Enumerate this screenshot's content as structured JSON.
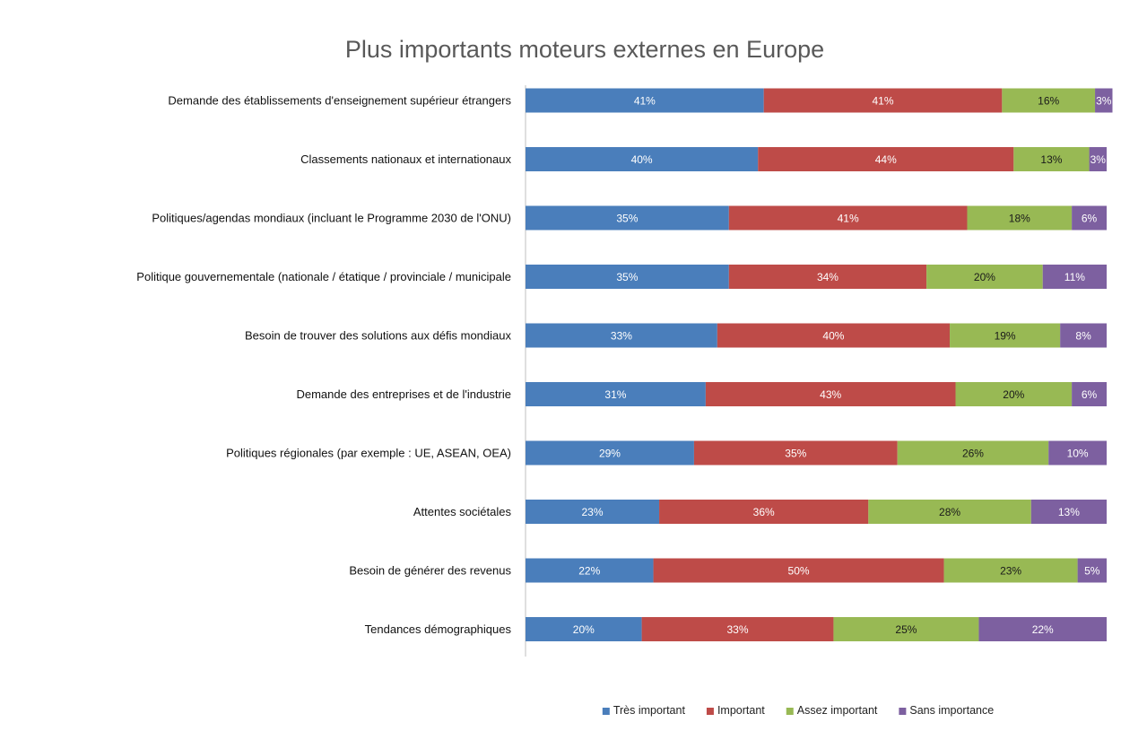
{
  "chart_data": {
    "type": "bar",
    "orientation": "horizontal",
    "stacked": true,
    "percent": true,
    "title": "Plus importants moteurs externes en Europe",
    "xlabel": "",
    "ylabel": "",
    "xlim": [
      0,
      100
    ],
    "grid": false,
    "legend_position": "bottom",
    "categories": [
      "Demande des établissements d'enseignement supérieur étrangers",
      "Classements nationaux et internationaux",
      "Politiques/agendas mondiaux (incluant le Programme 2030 de l'ONU)",
      "Politique gouvernementale (nationale / étatique / provinciale / municipale",
      "Besoin de trouver des solutions aux défis mondiaux",
      "Demande des entreprises et de l'industrie",
      "Politiques régionales (par exemple : UE, ASEAN, OEA)",
      "Attentes sociétales",
      "Besoin de générer des revenus",
      "Tendances démographiques"
    ],
    "series": [
      {
        "name": "Très important",
        "color": "#4a7ebb",
        "label_color": "#ffffff",
        "values": [
          41,
          40,
          35,
          35,
          33,
          31,
          29,
          23,
          22,
          20
        ],
        "labels": [
          "41%",
          "40%",
          "35%",
          "35%",
          "33%",
          "31%",
          "29%",
          "23%",
          "22%",
          "20%"
        ]
      },
      {
        "name": "Important",
        "color": "#be4b48",
        "label_color": "#ffffff",
        "values": [
          41,
          44,
          41,
          34,
          40,
          43,
          35,
          36,
          50,
          33
        ],
        "labels": [
          "41%",
          "44%",
          "41%",
          "34%",
          "40%",
          "43%",
          "35%",
          "36%",
          "50%",
          "33%"
        ]
      },
      {
        "name": "Assez important",
        "color": "#98b954",
        "label_color": "#1a1a1a",
        "values": [
          16,
          13,
          18,
          20,
          19,
          20,
          26,
          28,
          23,
          25
        ],
        "labels": [
          "16%",
          "13%",
          "18%",
          "20%",
          "19%",
          "20%",
          "26%",
          "28%",
          "23%",
          "25%"
        ]
      },
      {
        "name": "Sans importance",
        "color": "#7d60a0",
        "label_color": "#ffffff",
        "values": [
          3,
          3,
          6,
          11,
          8,
          6,
          10,
          13,
          5,
          22
        ],
        "labels": [
          "3%",
          "3%",
          "6%",
          "11%",
          "8%",
          "6%",
          "10%",
          "13%",
          "5%",
          "22%"
        ]
      }
    ]
  }
}
